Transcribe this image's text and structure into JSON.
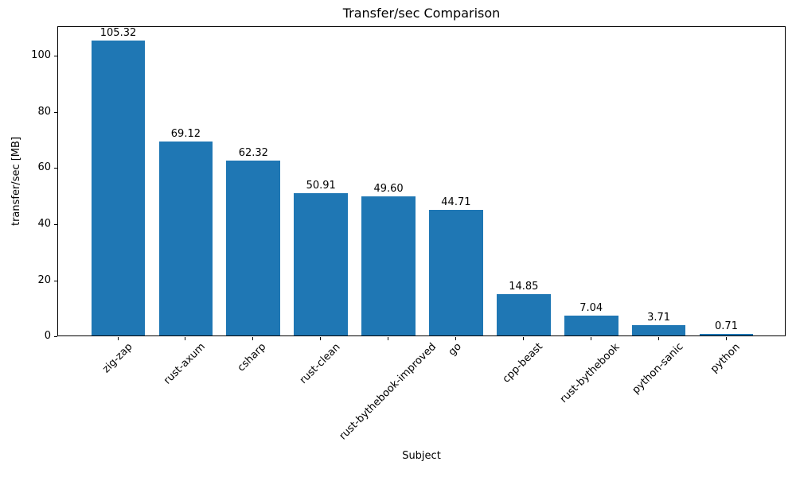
{
  "chart_data": {
    "type": "bar",
    "title": "Transfer/sec Comparison",
    "xlabel": "Subject",
    "ylabel": "transfer/sec [MB]",
    "categories": [
      "zig-zap",
      "rust-axum",
      "csharp",
      "rust-clean",
      "rust-bythebook-improved",
      "go",
      "cpp-beast",
      "rust-bythebook",
      "python-sanic",
      "python"
    ],
    "values": [
      105.32,
      69.12,
      62.32,
      50.91,
      49.6,
      44.71,
      14.85,
      7.04,
      3.71,
      0.71
    ],
    "value_labels": [
      "105.32",
      "69.12",
      "62.32",
      "50.91",
      "49.60",
      "44.71",
      "14.85",
      "7.04",
      "3.71",
      "0.71"
    ],
    "yticks": [
      0,
      20,
      40,
      60,
      80,
      100
    ],
    "ytick_labels": [
      "0",
      "20",
      "40",
      "60",
      "80",
      "100"
    ],
    "ylim": [
      0,
      110.59
    ],
    "xtick_rotation_deg": 45,
    "bar_color": "#1f77b4",
    "grid": false,
    "legend_position": "none"
  }
}
